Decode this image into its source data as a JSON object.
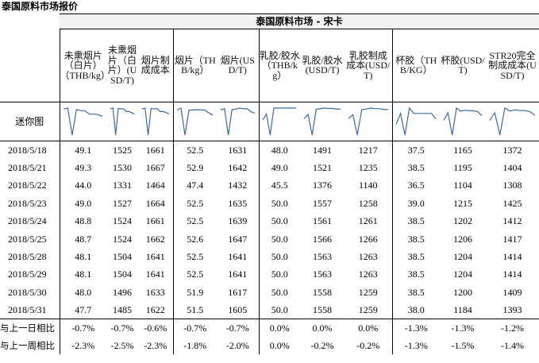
{
  "title": "泰国原料市场报价",
  "band_title": "泰国原料市场 - 宋卡",
  "sparkline_label": "迷你图",
  "columns": [
    "未熏烟片（白片）（THB/kg）",
    "未熏烟片（白片）(USD/T)",
    "烟片制成成本",
    "烟片（THB/kg）",
    "烟片(USD/T)",
    "乳胶/胶水（THB/kg）",
    "乳胶/胶水(USD/T)",
    "乳胶制成成本(USD/T)",
    "杯胶（THB/KG）",
    "杯胶(USD/T)",
    "STR20完全制成成本(USD/T)"
  ],
  "rows": [
    {
      "date": "2018/5/18",
      "values": [
        "49.1",
        "1525",
        "1661",
        "52.5",
        "1631",
        "48.0",
        "1491",
        "1217",
        "37.5",
        "1165",
        "1372"
      ]
    },
    {
      "date": "2018/5/21",
      "values": [
        "49.3",
        "1530",
        "1667",
        "52.9",
        "1642",
        "49.0",
        "1521",
        "1235",
        "38.5",
        "1195",
        "1404"
      ]
    },
    {
      "date": "2018/5/22",
      "values": [
        "44.0",
        "1331",
        "1464",
        "47.4",
        "1432",
        "45.5",
        "1376",
        "1140",
        "36.5",
        "1104",
        "1308"
      ]
    },
    {
      "date": "2018/5/23",
      "values": [
        "49.0",
        "1527",
        "1664",
        "52.5",
        "1635",
        "50.0",
        "1557",
        "1258",
        "39.0",
        "1215",
        "1425"
      ]
    },
    {
      "date": "2018/5/24",
      "values": [
        "48.8",
        "1524",
        "1661",
        "52.5",
        "1639",
        "50.0",
        "1561",
        "1261",
        "38.5",
        "1202",
        "1412"
      ]
    },
    {
      "date": "2018/5/25",
      "values": [
        "48.7",
        "1524",
        "1662",
        "52.6",
        "1647",
        "50.0",
        "1566",
        "1266",
        "38.5",
        "1206",
        "1417"
      ]
    },
    {
      "date": "2018/5/28",
      "values": [
        "48.1",
        "1504",
        "1641",
        "52.5",
        "1641",
        "50.0",
        "1563",
        "1263",
        "38.5",
        "1204",
        "1414"
      ]
    },
    {
      "date": "2018/5/29",
      "values": [
        "48.1",
        "1504",
        "1641",
        "52.5",
        "1641",
        "50.0",
        "1563",
        "1263",
        "38.5",
        "1204",
        "1414"
      ]
    },
    {
      "date": "2018/5/30",
      "values": [
        "48.0",
        "1496",
        "1633",
        "51.9",
        "1617",
        "50.0",
        "1558",
        "1259",
        "38.5",
        "1200",
        "1409"
      ]
    },
    {
      "date": "2018/5/31",
      "values": [
        "47.7",
        "1485",
        "1622",
        "51.5",
        "1605",
        "50.0",
        "1558",
        "1259",
        "38.0",
        "1184",
        "1393"
      ]
    }
  ],
  "changes": [
    {
      "label": "与上一日相比",
      "values": [
        "-0.7%",
        "-0.7%",
        "-0.6%",
        "-0.7%",
        "-0.7%",
        "0.0%",
        "0.0%",
        "0.0%",
        "-1.3%",
        "-1.3%",
        "-1.2%"
      ]
    },
    {
      "label": "与上一周相比",
      "values": [
        "-2.3%",
        "-2.5%",
        "-2.3%",
        "-1.8%",
        "-2.0%",
        "0.0%",
        "-0.2%",
        "-0.2%",
        "-1.3%",
        "-1.5%",
        "-1.4%"
      ]
    }
  ],
  "colors": {
    "sparkline": "#3a6aa8",
    "band_bg": "#f2f2f2"
  }
}
